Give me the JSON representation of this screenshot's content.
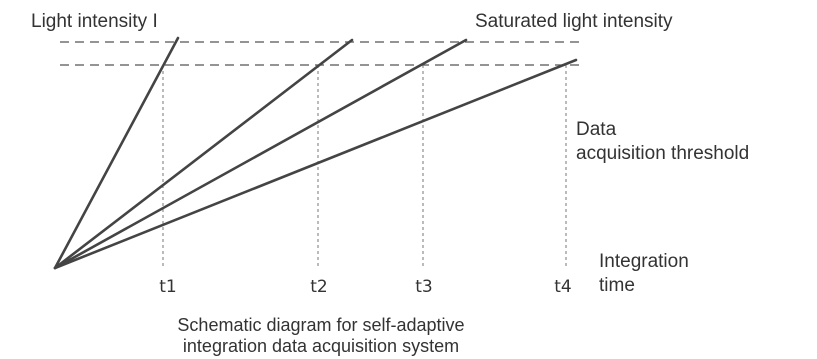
{
  "labels": {
    "intensity": "Light intensity I",
    "saturated": "Saturated light intensity",
    "threshold_line1": "Data",
    "threshold_line2": "acquisition threshold",
    "time_line1": "Integration",
    "time_line2": "time"
  },
  "ticks": [
    "t1",
    "t2",
    "t3",
    "t4"
  ],
  "caption": {
    "line1": "Schematic diagram for self-adaptive",
    "line2": "integration data acquisition system"
  }
}
